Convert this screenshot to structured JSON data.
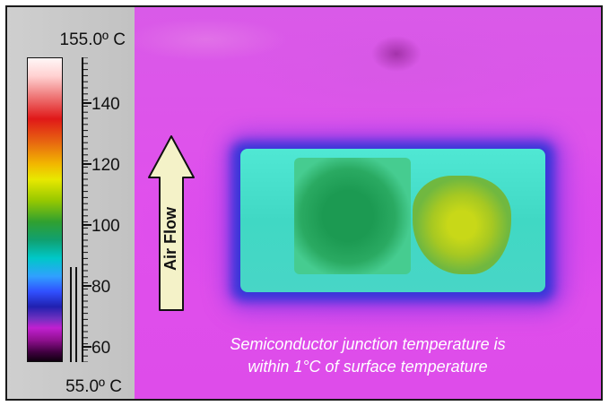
{
  "scale": {
    "max_label": "155.0º C",
    "min_label": "55.0º C",
    "range": [
      55,
      155
    ],
    "tick_labels": [
      "140",
      "120",
      "100",
      "80",
      "60"
    ],
    "tick_values": [
      140,
      120,
      100,
      80,
      60
    ]
  },
  "arrow": {
    "label": "Air Flow"
  },
  "caption": {
    "line1": "Semiconductor junction temperature is",
    "line2": "within 1°C of surface temperature"
  },
  "colors": {
    "background": "#de50ea",
    "device_outer": "#48d8c8",
    "device_cool_zone": "#1c9a52",
    "device_hot_zone": "#c8d818",
    "arrow_fill": "#f4f2c8",
    "caption_text": "#ffffff"
  }
}
